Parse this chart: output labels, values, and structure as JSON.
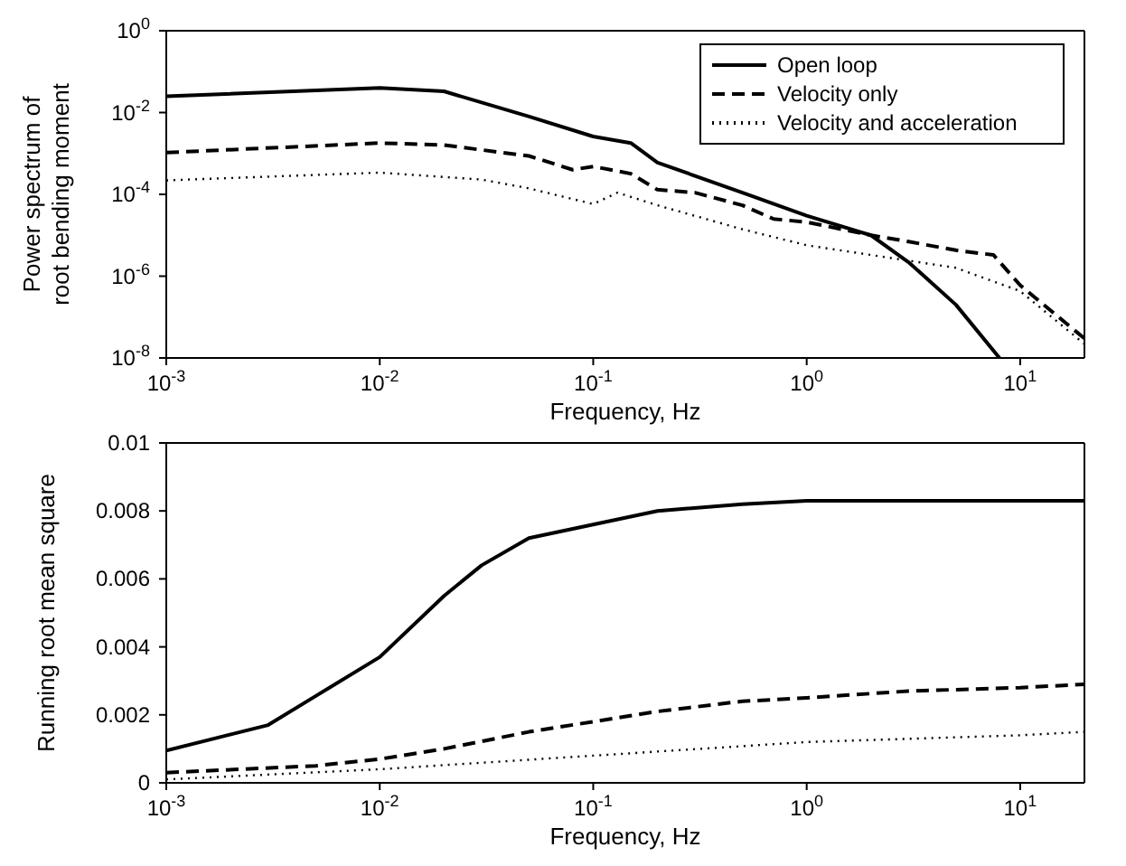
{
  "chart_data": [
    {
      "type": "line",
      "xlabel": "Frequency, Hz",
      "ylabel": "Power spectrum of\nroot bending moment",
      "log": "xy",
      "grid": false,
      "legend": "top right",
      "marker": "none",
      "xlim": [
        0.001,
        20
      ],
      "xticks": [
        {
          "value": 0.001,
          "label": "10$^{-3}$"
        },
        {
          "value": 0.01,
          "label": "10$^{-2}$"
        },
        {
          "value": 0.1,
          "label": "10$^{-1}$"
        },
        {
          "value": 1,
          "label": "10$^{0}$"
        },
        {
          "value": 10,
          "label": "10$^{1}$"
        }
      ],
      "ylim": [
        1e-08,
        1
      ],
      "yticks": [
        {
          "value": 1e-08,
          "label": "10$^{-8}$"
        },
        {
          "value": 1e-06,
          "label": "10$^{-6}$"
        },
        {
          "value": 0.0001,
          "label": "10$^{-4}$"
        },
        {
          "value": 0.01,
          "label": "10$^{-2}$"
        },
        {
          "value": 1,
          "label": "10$^{0}$"
        }
      ],
      "series": [
        {
          "name": "Open loop",
          "color": "#000000",
          "line_style": "solid",
          "x": [
            0.001,
            0.01,
            0.02,
            0.05,
            0.1,
            0.15,
            0.2,
            0.5,
            1,
            2,
            3,
            5,
            8
          ],
          "values": [
            0.025,
            0.04,
            0.033,
            0.008,
            0.0026,
            0.0018,
            0.0006,
            0.00011,
            3e-05,
            1e-05,
            2.2e-06,
            2e-07,
            1e-08
          ]
        },
        {
          "name": "Velocity only",
          "color": "#000000",
          "line_style": "dashed",
          "x": [
            0.001,
            0.01,
            0.02,
            0.05,
            0.08,
            0.1,
            0.15,
            0.2,
            0.3,
            0.5,
            0.7,
            1,
            2,
            3,
            5,
            7.5,
            10,
            20
          ],
          "values": [
            0.00105,
            0.0018,
            0.0016,
            0.00087,
            0.0004,
            0.00048,
            0.00032,
            0.00013,
            0.00011,
            5.4e-05,
            2.5e-05,
            2.1e-05,
            1e-05,
            7e-06,
            4.3e-06,
            3.3e-06,
            6e-07,
            3e-08
          ]
        },
        {
          "name": "Velocity and acceleration",
          "color": "#000000",
          "line_style": "dotted",
          "x": [
            0.001,
            0.01,
            0.03,
            0.05,
            0.1,
            0.13,
            0.2,
            0.5,
            1,
            2,
            5,
            10,
            20
          ],
          "values": [
            0.00022,
            0.00034,
            0.00023,
            0.00014,
            5.8e-05,
            0.00011,
            5.4e-05,
            1.4e-05,
            5.7e-06,
            3.3e-06,
            1.6e-06,
            4.3e-07,
            2.2e-08
          ]
        }
      ]
    },
    {
      "type": "line",
      "xlabel": "Frequency, Hz",
      "ylabel": "Running root mean square",
      "log": "x",
      "grid": false,
      "marker": "none",
      "xlim": [
        0.001,
        20
      ],
      "xticks": [
        {
          "value": 0.001,
          "label": "10$^{-3}$"
        },
        {
          "value": 0.01,
          "label": "10$^{-2}$"
        },
        {
          "value": 0.1,
          "label": "10$^{-1}$"
        },
        {
          "value": 1,
          "label": "10$^{0}$"
        },
        {
          "value": 10,
          "label": "10$^{1}$"
        }
      ],
      "ylim": [
        0,
        0.01
      ],
      "yticks": [
        0,
        0.002,
        0.004,
        0.006,
        0.008,
        0.01
      ],
      "series": [
        {
          "color": "#000000",
          "line_style": "solid",
          "x": [
            0.001,
            0.003,
            0.005,
            0.01,
            0.02,
            0.03,
            0.05,
            0.1,
            0.2,
            0.5,
            1,
            20
          ],
          "values": [
            0.00095,
            0.0017,
            0.00255,
            0.0037,
            0.0055,
            0.0064,
            0.0072,
            0.0076,
            0.008,
            0.0082,
            0.0083,
            0.0083
          ]
        },
        {
          "color": "#000000",
          "line_style": "dashed",
          "x": [
            0.001,
            0.005,
            0.01,
            0.02,
            0.05,
            0.1,
            0.2,
            0.5,
            1,
            3,
            10,
            20
          ],
          "values": [
            0.0003,
            0.0005,
            0.0007,
            0.001,
            0.0015,
            0.0018,
            0.0021,
            0.0024,
            0.0025,
            0.0027,
            0.0028,
            0.0029
          ]
        },
        {
          "color": "#000000",
          "line_style": "dotted",
          "x": [
            0.001,
            0.01,
            0.1,
            1,
            10,
            20
          ],
          "values": [
            0.0001,
            0.0004,
            0.0008,
            0.0012,
            0.0014,
            0.0015
          ]
        }
      ]
    }
  ]
}
